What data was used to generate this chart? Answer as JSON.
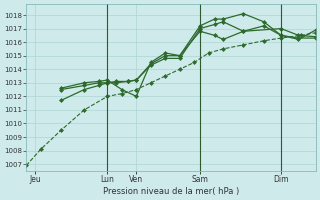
{
  "xlabel": "Pression niveau de la mer( hPa )",
  "bg_color": "#ceeaea",
  "grid_color": "#add4d4",
  "line_color": "#2d6a2d",
  "ylim": [
    1006.5,
    1018.8
  ],
  "yticks": [
    1007,
    1008,
    1009,
    1010,
    1011,
    1012,
    1013,
    1014,
    1015,
    1016,
    1017,
    1018
  ],
  "xtick_labels": [
    "Jeu",
    "Lun",
    "Ven",
    "Sam",
    "Dim"
  ],
  "xlim": [
    0,
    100
  ],
  "vline_x": [
    28,
    60,
    88
  ],
  "xtick_x": [
    3,
    28,
    38,
    60,
    88
  ],
  "series": {
    "low_dotted": {
      "x": [
        0,
        5,
        12,
        20,
        28,
        33,
        38,
        43,
        48,
        53,
        58,
        63,
        68,
        75,
        82,
        88,
        95,
        100
      ],
      "y": [
        1006.9,
        1008.1,
        1009.5,
        1011.0,
        1012.0,
        1012.2,
        1012.5,
        1013.0,
        1013.5,
        1014.0,
        1014.5,
        1015.2,
        1015.5,
        1015.8,
        1016.1,
        1016.3,
        1016.5,
        1016.7
      ],
      "style": "--",
      "lw": 0.8,
      "marker": "D",
      "ms": 2.0
    },
    "line1": {
      "x": [
        12,
        20,
        25,
        28,
        31,
        35,
        38,
        43,
        48,
        53,
        60,
        65,
        68,
        75,
        82,
        88,
        94,
        100
      ],
      "y": [
        1011.7,
        1012.5,
        1012.8,
        1013.0,
        1013.0,
        1013.1,
        1013.2,
        1014.4,
        1015.0,
        1015.0,
        1017.2,
        1017.7,
        1017.7,
        1018.1,
        1017.5,
        1016.5,
        1016.2,
        1016.9
      ],
      "style": "-",
      "lw": 0.9,
      "marker": "D",
      "ms": 2.0
    },
    "line2": {
      "x": [
        12,
        20,
        25,
        28,
        31,
        35,
        38,
        43,
        48,
        53,
        60,
        65,
        68,
        75,
        88,
        94,
        100
      ],
      "y": [
        1012.5,
        1012.8,
        1013.0,
        1013.0,
        1013.1,
        1013.1,
        1013.2,
        1014.3,
        1014.8,
        1014.8,
        1017.0,
        1017.3,
        1017.5,
        1016.8,
        1017.0,
        1016.5,
        1016.4
      ],
      "style": "-",
      "lw": 0.9,
      "marker": "D",
      "ms": 2.0
    },
    "line3": {
      "x": [
        12,
        20,
        25,
        28,
        33,
        38,
        43,
        48,
        53,
        60,
        65,
        68,
        75,
        82,
        88,
        94,
        100
      ],
      "y": [
        1012.6,
        1013.0,
        1013.1,
        1013.2,
        1012.5,
        1012.0,
        1014.5,
        1015.2,
        1015.0,
        1016.8,
        1016.5,
        1016.2,
        1016.8,
        1017.2,
        1016.5,
        1016.3,
        1016.3
      ],
      "style": "-",
      "lw": 0.9,
      "marker": "D",
      "ms": 2.0
    }
  }
}
